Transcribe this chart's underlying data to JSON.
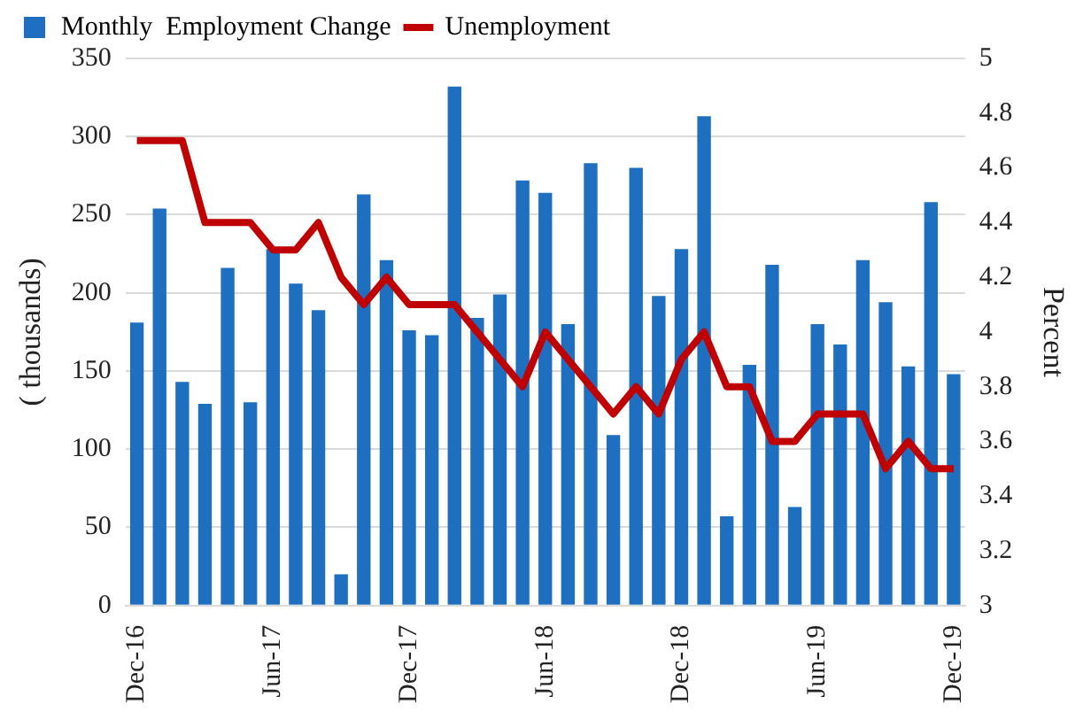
{
  "chart_data": {
    "type": "bar",
    "categories": [
      "Dec-16",
      null,
      null,
      null,
      null,
      null,
      "Jun-17",
      null,
      null,
      null,
      null,
      null,
      "Dec-17",
      null,
      null,
      null,
      null,
      null,
      "Jun-18",
      null,
      null,
      null,
      null,
      null,
      "Dec-18",
      null,
      null,
      null,
      null,
      null,
      "Jun-19",
      null,
      null,
      null,
      null,
      null,
      "Dec-19"
    ],
    "series": [
      {
        "name": "Monthly  Employment Change",
        "color": "#1f6fc0",
        "values": [
          181,
          254,
          143,
          129,
          216,
          130,
          228,
          206,
          189,
          20,
          263,
          221,
          176,
          173,
          332,
          184,
          199,
          272,
          264,
          180,
          283,
          109,
          280,
          198,
          228,
          313,
          57,
          154,
          218,
          63,
          180,
          167,
          221,
          194,
          153,
          258,
          148
        ]
      },
      {
        "name": "Unemployment",
        "type": "line",
        "axis": "y2",
        "color": "#c00000",
        "values": [
          4.7,
          4.7,
          4.7,
          4.4,
          4.4,
          4.4,
          4.3,
          4.3,
          4.4,
          4.2,
          4.1,
          4.2,
          4.1,
          4.1,
          4.1,
          4.0,
          3.9,
          3.8,
          4.0,
          3.9,
          3.8,
          3.7,
          3.8,
          3.7,
          3.9,
          4.0,
          3.8,
          3.8,
          3.6,
          3.6,
          3.7,
          3.7,
          3.7,
          3.5,
          3.6,
          3.5,
          3.5
        ]
      }
    ],
    "ylabel": "( thousands)",
    "y2label": "Percent",
    "ylim": [
      0,
      350
    ],
    "yticks": [
      0,
      50,
      100,
      150,
      200,
      250,
      300,
      350
    ],
    "y2lim": [
      3,
      5
    ],
    "y2ticks": [
      3,
      3.2,
      3.4,
      3.6,
      3.8,
      4,
      4.2,
      4.4,
      4.6,
      4.8,
      5
    ],
    "grid": "y",
    "legend": "top",
    "marker": "none"
  }
}
